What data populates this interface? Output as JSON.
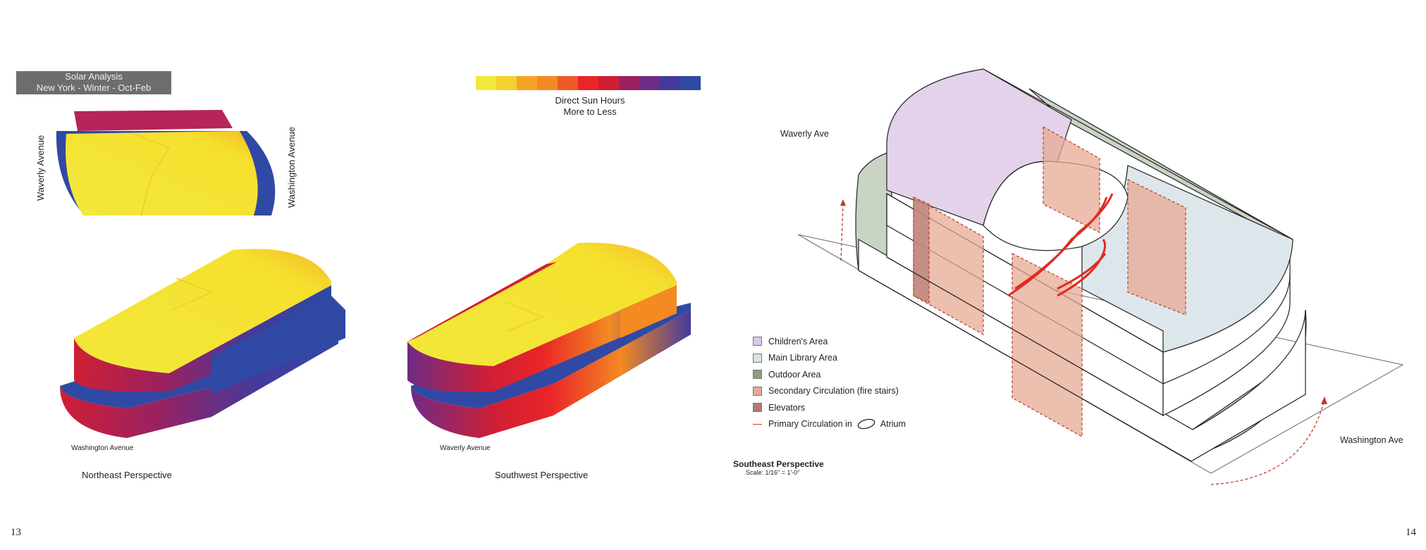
{
  "solar": {
    "title_line1": "Solar Analysis",
    "title_line2": "New York - Winter - Oct-Feb",
    "legend_line1": "Direct Sun Hours",
    "legend_line2": "More to Less",
    "legend_colors": [
      "#f2e83b",
      "#f5d130",
      "#f4a424",
      "#f38a22",
      "#ee5a27",
      "#ea2528",
      "#cf1f35",
      "#9a2160",
      "#6f2b85",
      "#443a9b",
      "#3049a5"
    ]
  },
  "plan": {
    "street_left": "Waverly Avenue",
    "street_right": "Washington Avenue"
  },
  "northeast": {
    "street": "Washington Avenue",
    "label": "Northeast Perspective"
  },
  "southwest": {
    "street": "Waverly Avenue",
    "label": "Southwest Perspective"
  },
  "southeast": {
    "title": "Southeast Perspective",
    "scale": "Scale: 1/16\" = 1'-0\"",
    "street_top": "Waverly Ave",
    "street_bottom": "Washington Ave",
    "legend": [
      {
        "label": "Children's Area",
        "color": "#dcc8e4"
      },
      {
        "label": "Main Library Area",
        "color": "#d6e2e6"
      },
      {
        "label": "Outdoor Area",
        "color": "#8a9e7e"
      },
      {
        "label": "Secondary Circulation (fire stairs)",
        "color": "#e6a994"
      },
      {
        "label": "Elevators",
        "color": "#b57b73"
      }
    ],
    "primary_label": "Primary Circulation in",
    "atrium_label": "Atrium"
  },
  "pages": {
    "left": "13",
    "right": "14"
  }
}
